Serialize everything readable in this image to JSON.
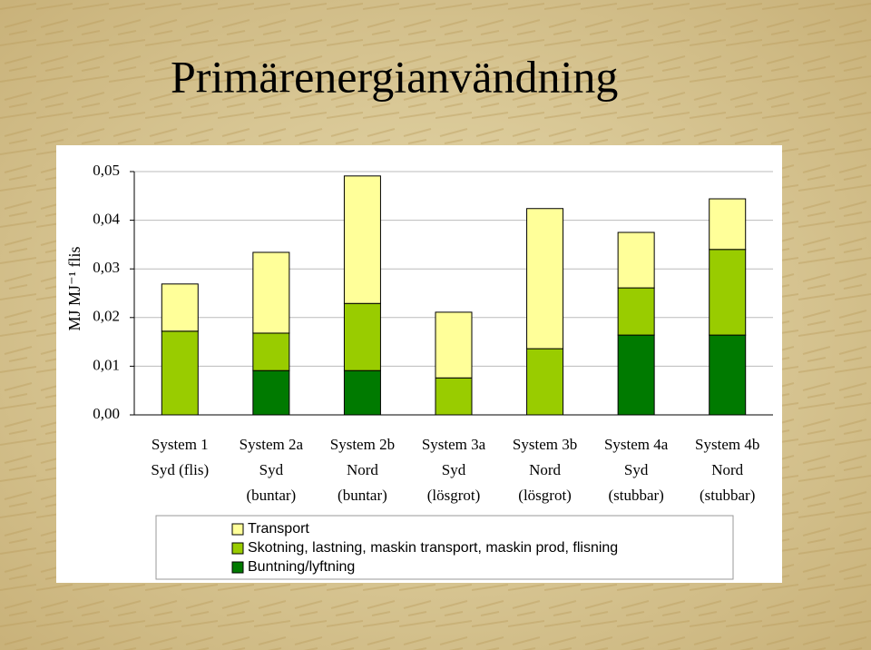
{
  "chart_data": {
    "type": "stacked-bar",
    "title": "Primärenergianvändning",
    "y_label": "MJ MJ⁻¹ flis",
    "categories": [
      [
        "System 1",
        "Syd (flis)"
      ],
      [
        "System 2a",
        "Syd",
        "(buntar)"
      ],
      [
        "System 2b",
        "Nord",
        "(buntar)"
      ],
      [
        "System 3a",
        "Syd",
        "(lösgrot)"
      ],
      [
        "System 3b",
        "Nord",
        "(lösgrot)"
      ],
      [
        "System 4a",
        "Syd",
        "(stubbar)"
      ],
      [
        "System 4b",
        "Nord",
        "(stubbar)"
      ]
    ],
    "series": [
      {
        "name": "Buntning/lyftning",
        "color": "#007a00",
        "values": [
          0,
          0.0091,
          0.0091,
          0,
          0,
          0.0164,
          0.0164
        ]
      },
      {
        "name": "Skotning, lastning, maskin transport, maskin prod, flisning",
        "color": "#99cc00",
        "values": [
          0.0172,
          0.0077,
          0.0138,
          0.0076,
          0.0136,
          0.0097,
          0.0176
        ]
      },
      {
        "name": "Transport",
        "color": "#ffff99",
        "values": [
          0.0097,
          0.0166,
          0.0262,
          0.0135,
          0.0288,
          0.0114,
          0.0104
        ]
      }
    ],
    "ylim": [
      0,
      0.05
    ],
    "yticks": [
      {
        "value": 0,
        "label": "0,00"
      },
      {
        "value": 0.01,
        "label": "0,01"
      },
      {
        "value": 0.02,
        "label": "0,02"
      },
      {
        "value": 0.03,
        "label": "0,03"
      },
      {
        "value": 0.04,
        "label": "0,04"
      },
      {
        "value": 0.05,
        "label": "0,05"
      }
    ],
    "grid": true
  }
}
